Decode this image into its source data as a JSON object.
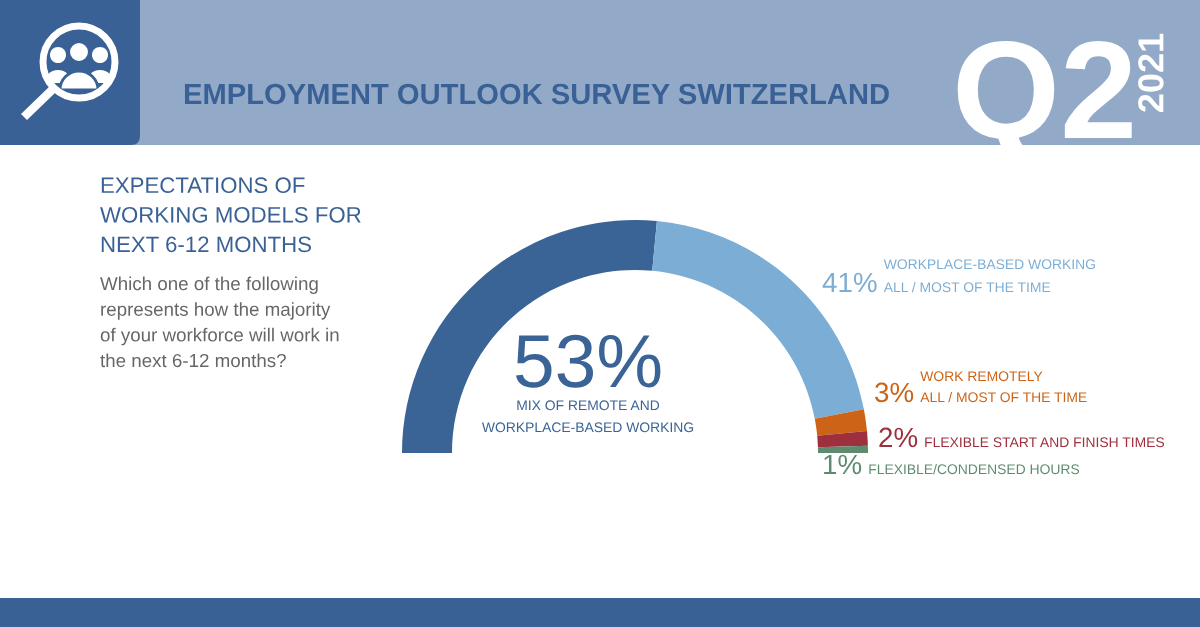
{
  "chart_data": {
    "type": "donut",
    "title": "EMPLOYMENT OUTLOOK SURVEY SWITZERLAND",
    "subtitle": "EXPECTATIONS OF\nWORKING MODELS FOR\nNEXT 6-12 MONTHS",
    "annotations": [
      "Q2",
      "2021",
      "Which one of the following\nrepresents how the majority\nof your workforce will work in\nthe next 6-12 months?"
    ],
    "categories": [
      "MIX OF REMOTE AND\nWORKPLACE-BASED WORKING",
      "WORKPLACE-BASED WORKING\nALL / MOST OF THE TIME",
      "WORK REMOTELY\nALL / MOST OF THE TIME",
      "FLEXIBLE START AND FINISH TIMES",
      "FLEXIBLE/CONDENSED HOURS"
    ],
    "values": [
      53,
      41,
      3,
      2,
      1
    ],
    "colors": [
      "#3a6396",
      "#7badd5",
      "#cc6316",
      "#9e2f3d",
      "#5e8b70"
    ],
    "value_labels": [
      "53%",
      "41%",
      "3%",
      "2%",
      "1%"
    ]
  }
}
